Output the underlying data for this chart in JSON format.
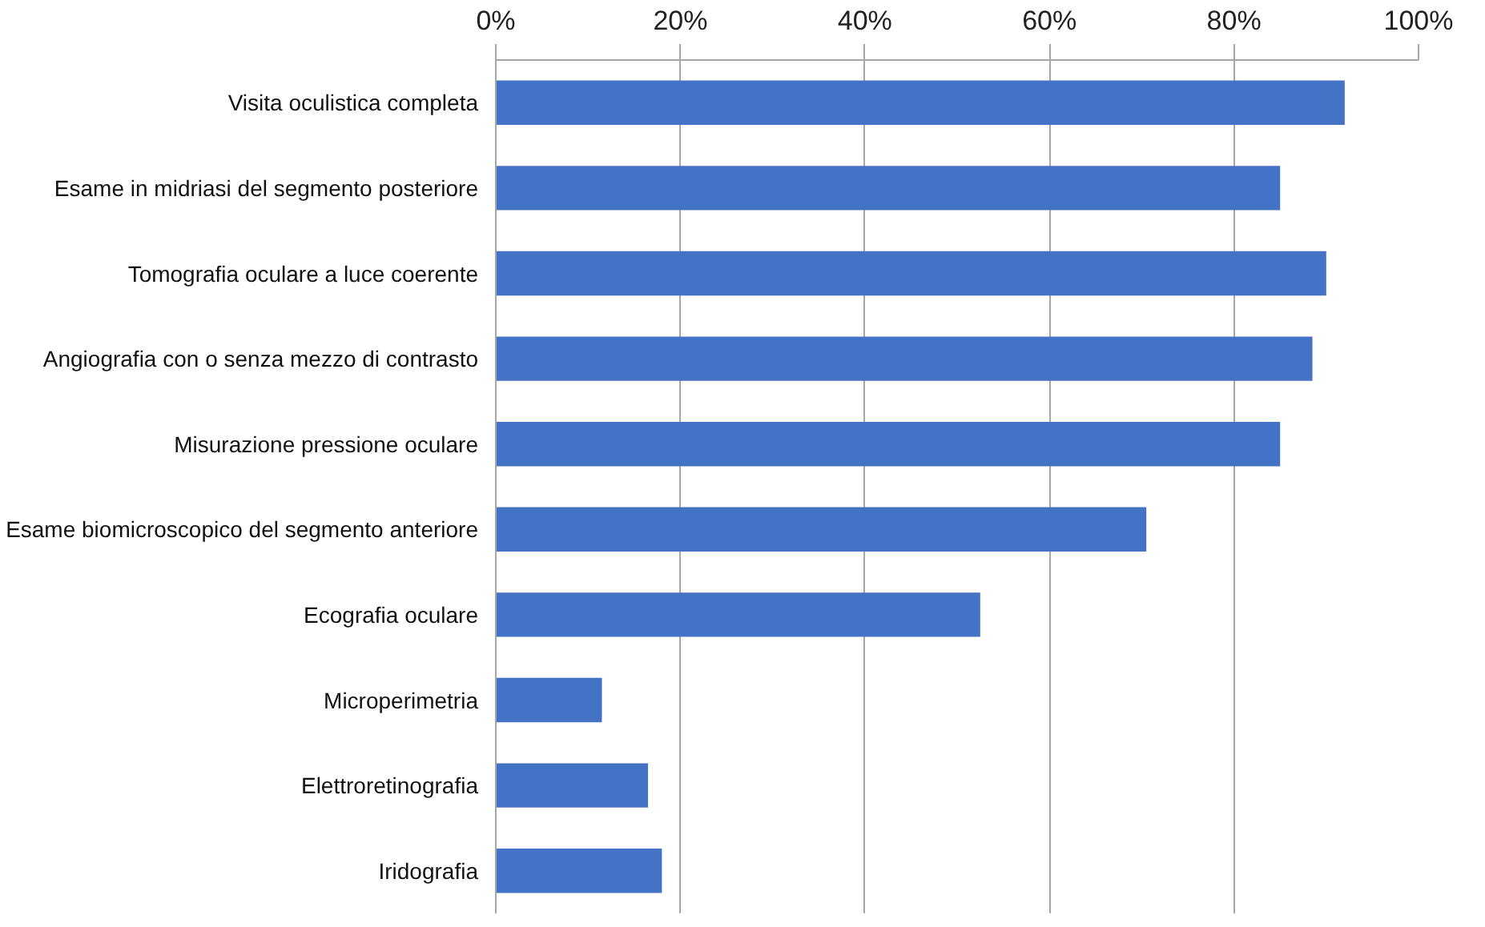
{
  "chart_data": {
    "type": "bar",
    "orientation": "horizontal",
    "categories": [
      "Visita oculistica completa",
      "Esame in midriasi del segmento posteriore",
      "Tomografia oculare a luce coerente",
      "Angiografia con o senza mezzo di contrasto",
      "Misurazione pressione oculare",
      "Esame biomicroscopico del segmento anteriore",
      "Ecografia oculare",
      "Microperimetria",
      "Elettroretinografia",
      "Iridografia"
    ],
    "values": [
      92,
      85,
      90,
      88.5,
      85,
      70.5,
      52.5,
      11.5,
      16.5,
      18
    ],
    "color": "#4472c4",
    "xlim": [
      0,
      100
    ],
    "xticks": [
      {
        "value": 0,
        "label": "0%"
      },
      {
        "value": 20,
        "label": "20%"
      },
      {
        "value": 40,
        "label": "40%"
      },
      {
        "value": 60,
        "label": "60%"
      },
      {
        "value": 80,
        "label": "80%"
      },
      {
        "value": 100,
        "label": "100%"
      }
    ],
    "grid": "x"
  }
}
